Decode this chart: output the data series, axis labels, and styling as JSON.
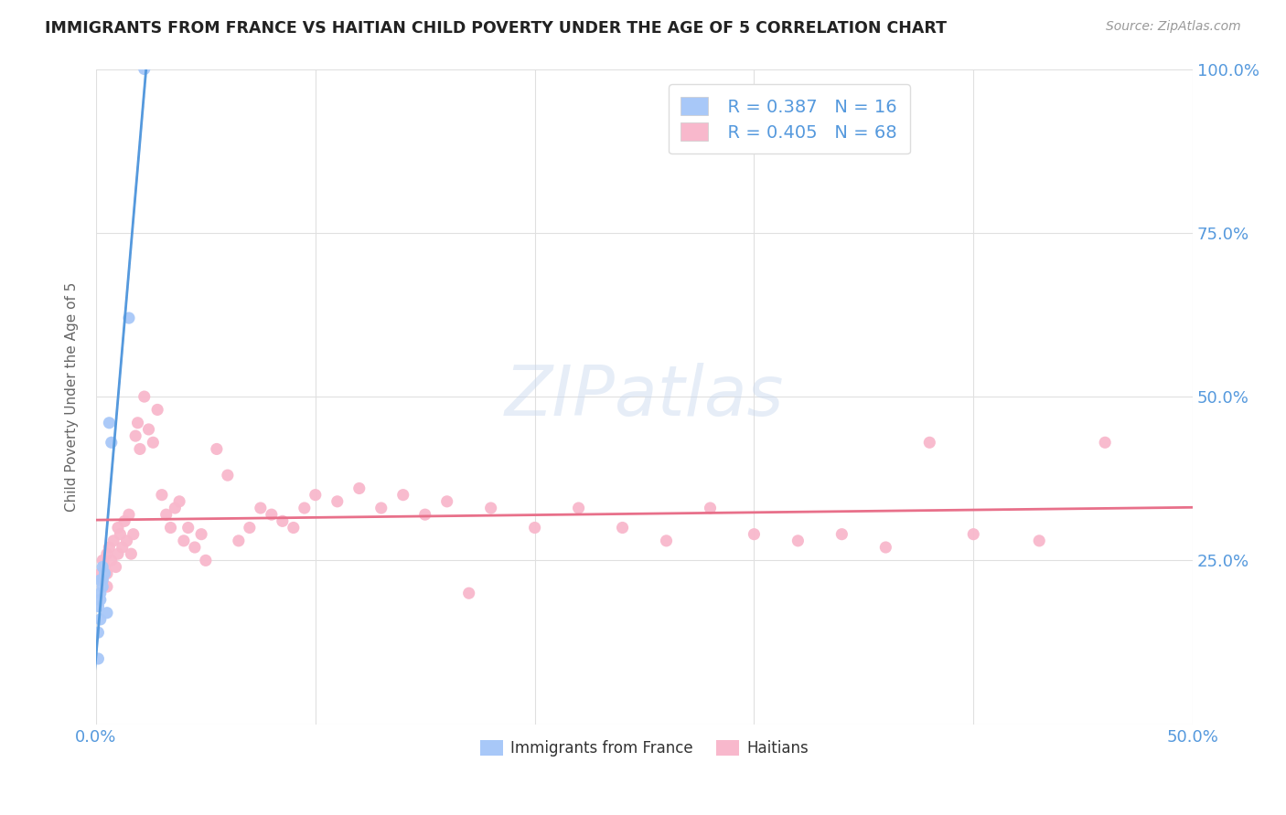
{
  "title": "IMMIGRANTS FROM FRANCE VS HAITIAN CHILD POVERTY UNDER THE AGE OF 5 CORRELATION CHART",
  "source": "Source: ZipAtlas.com",
  "ylabel": "Child Poverty Under the Age of 5",
  "watermark": "ZIPatlas",
  "legend_france_R": "R = 0.387",
  "legend_france_N": "N = 16",
  "legend_haitian_R": "R = 0.405",
  "legend_haitian_N": "N = 68",
  "legend_label_france": "Immigrants from France",
  "legend_label_haitian": "Haitians",
  "color_france": "#a8c8f8",
  "color_haitian": "#f8b8cc",
  "color_trendline_france": "#5599dd",
  "color_trendline_haitian": "#e8708a",
  "color_text_blue": "#5599dd",
  "france_points_x": [
    0.001,
    0.001,
    0.001,
    0.002,
    0.002,
    0.002,
    0.002,
    0.003,
    0.003,
    0.003,
    0.004,
    0.005,
    0.006,
    0.007,
    0.015,
    0.022
  ],
  "france_points_y": [
    0.18,
    0.14,
    0.1,
    0.22,
    0.2,
    0.19,
    0.16,
    0.24,
    0.22,
    0.21,
    0.23,
    0.17,
    0.46,
    0.43,
    0.62,
    1.0
  ],
  "haitian_points_x": [
    0.002,
    0.003,
    0.003,
    0.004,
    0.005,
    0.005,
    0.005,
    0.006,
    0.007,
    0.008,
    0.009,
    0.01,
    0.01,
    0.011,
    0.012,
    0.013,
    0.014,
    0.015,
    0.016,
    0.017,
    0.018,
    0.019,
    0.02,
    0.022,
    0.024,
    0.026,
    0.028,
    0.03,
    0.032,
    0.034,
    0.036,
    0.038,
    0.04,
    0.042,
    0.045,
    0.048,
    0.05,
    0.055,
    0.06,
    0.065,
    0.07,
    0.075,
    0.08,
    0.085,
    0.09,
    0.095,
    0.1,
    0.11,
    0.12,
    0.13,
    0.14,
    0.15,
    0.16,
    0.17,
    0.18,
    0.2,
    0.22,
    0.24,
    0.26,
    0.28,
    0.3,
    0.32,
    0.34,
    0.36,
    0.38,
    0.4,
    0.43,
    0.46
  ],
  "haitian_points_y": [
    0.23,
    0.25,
    0.22,
    0.24,
    0.26,
    0.23,
    0.21,
    0.27,
    0.25,
    0.28,
    0.24,
    0.3,
    0.26,
    0.29,
    0.27,
    0.31,
    0.28,
    0.32,
    0.26,
    0.29,
    0.44,
    0.46,
    0.42,
    0.5,
    0.45,
    0.43,
    0.48,
    0.35,
    0.32,
    0.3,
    0.33,
    0.34,
    0.28,
    0.3,
    0.27,
    0.29,
    0.25,
    0.42,
    0.38,
    0.28,
    0.3,
    0.33,
    0.32,
    0.31,
    0.3,
    0.33,
    0.35,
    0.34,
    0.36,
    0.33,
    0.35,
    0.32,
    0.34,
    0.2,
    0.33,
    0.3,
    0.33,
    0.3,
    0.28,
    0.33,
    0.29,
    0.28,
    0.29,
    0.27,
    0.43,
    0.29,
    0.28,
    0.43
  ],
  "xlim": [
    0.0,
    0.5
  ],
  "ylim": [
    0.0,
    1.0
  ],
  "ytick_vals": [
    0.0,
    0.25,
    0.5,
    0.75,
    1.0
  ],
  "ytick_labels_right": [
    "",
    "25.0%",
    "50.0%",
    "75.0%",
    "100.0%"
  ],
  "xtick_vals": [
    0.0,
    0.1,
    0.2,
    0.3,
    0.4,
    0.5
  ],
  "xtick_labels": [
    "0.0%",
    "",
    "",
    "",
    "",
    "50.0%"
  ]
}
